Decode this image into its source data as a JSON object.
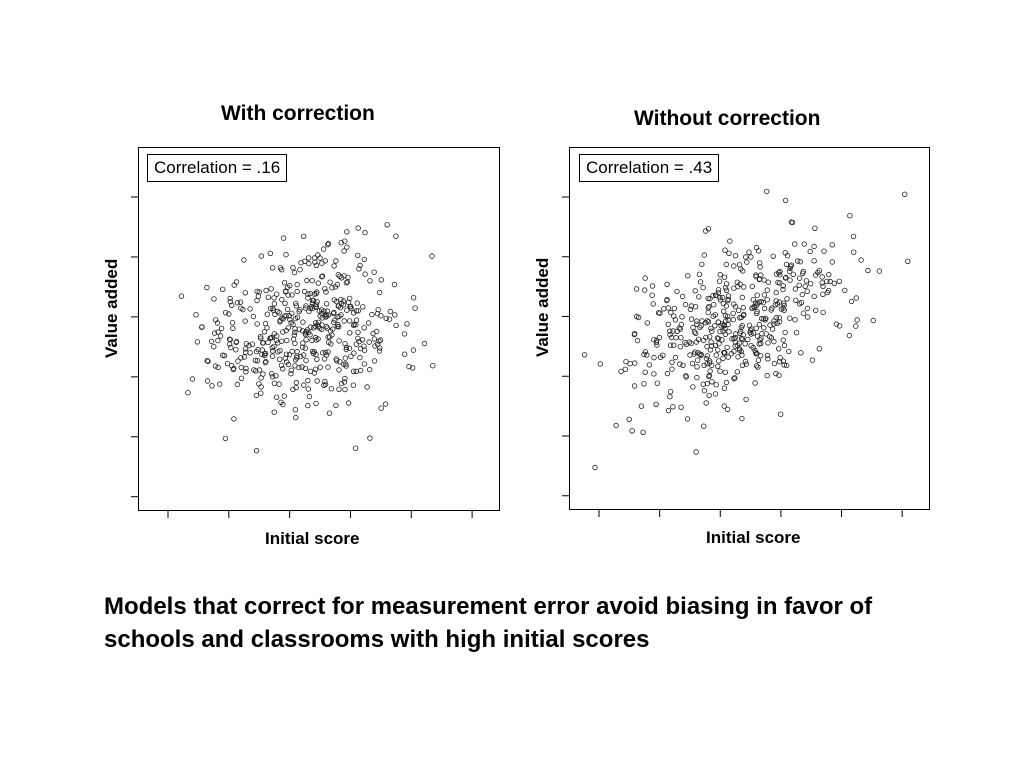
{
  "caption": "Models that correct for measurement error avoid biasing in favor of schools and classrooms with high initial scores",
  "chart_data": [
    {
      "type": "scatter",
      "title": "With correction",
      "xlabel": "Initial score",
      "ylabel": "Value added",
      "annotation": "Correlation = .16",
      "correlation": 0.16,
      "n_points": 480,
      "grid": false,
      "legend": "none",
      "xlim": [
        -3.5,
        3.5
      ],
      "ylim": [
        -3.5,
        3.5
      ],
      "x_ticks": 6,
      "y_ticks": 6,
      "x_mean": -0.35,
      "x_sd": 0.95,
      "y_mean": 0.0,
      "y_sd": 0.78,
      "seed": 17
    },
    {
      "type": "scatter",
      "title": "Without correction",
      "xlabel": "Initial score",
      "ylabel": "Value added",
      "annotation": "Correlation = .43",
      "correlation": 0.43,
      "n_points": 480,
      "grid": false,
      "legend": "none",
      "xlim": [
        -3.5,
        3.5
      ],
      "ylim": [
        -3.5,
        3.5
      ],
      "x_ticks": 6,
      "y_ticks": 6,
      "x_mean": -0.3,
      "x_sd": 1.0,
      "y_mean": 0.0,
      "y_sd": 0.82,
      "seed": 43
    }
  ]
}
